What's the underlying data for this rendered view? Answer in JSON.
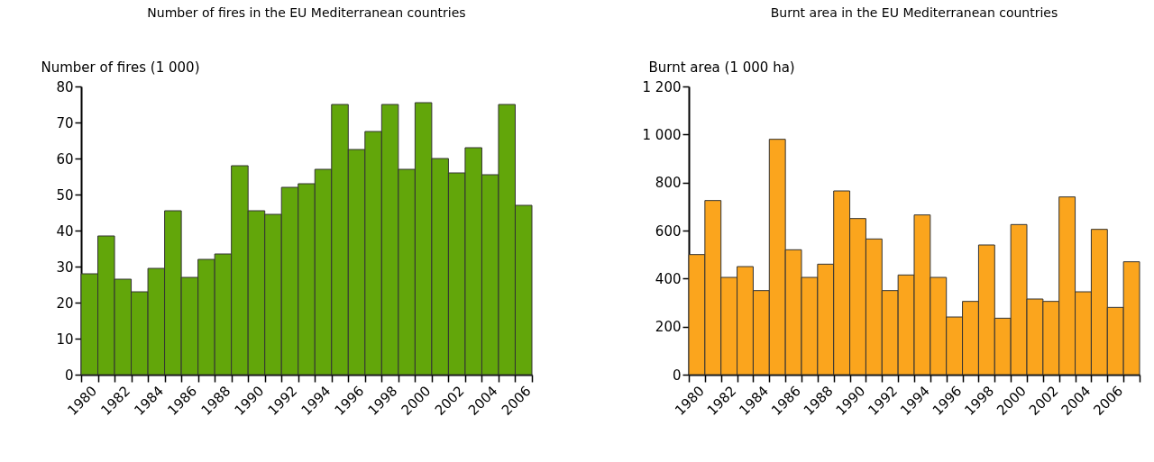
{
  "chart_data": [
    {
      "type": "bar",
      "title": "Number of fires in the EU Mediterranean countries",
      "ylabel": "Number of fires (1 000)",
      "categories": [
        "1980",
        null,
        "1982",
        null,
        "1984",
        null,
        "1986",
        null,
        "1988",
        null,
        "1990",
        null,
        "1992",
        null,
        "1994",
        null,
        "1996",
        null,
        "1998",
        null,
        "2000",
        null,
        "2002",
        null,
        "2004",
        null,
        "2006"
      ],
      "values": [
        28,
        38.5,
        26.5,
        23,
        29.5,
        45.5,
        27,
        32,
        33.5,
        58,
        45.5,
        44.5,
        52,
        53,
        57,
        75,
        62.5,
        67.5,
        75,
        57,
        75.5,
        60,
        56,
        63,
        55.5,
        75,
        47
      ],
      "color": "#62a60a",
      "ylim": [
        0,
        80
      ],
      "yticks": [
        0,
        10,
        20,
        30,
        40,
        50,
        60,
        70,
        80
      ],
      "grid": false
    },
    {
      "type": "bar",
      "title": "Burnt area in the EU Mediterranean countries",
      "ylabel": "Burnt area (1 000 ha)",
      "categories": [
        "1980",
        null,
        "1982",
        null,
        "1984",
        null,
        "1986",
        null,
        "1988",
        null,
        "1990",
        null,
        "1992",
        null,
        "1994",
        null,
        "1996",
        null,
        "1998",
        null,
        "2000",
        null,
        "2002",
        null,
        "2004",
        null,
        "2006",
        null
      ],
      "values": [
        500,
        725,
        405,
        450,
        350,
        980,
        520,
        405,
        460,
        765,
        650,
        565,
        350,
        415,
        665,
        405,
        240,
        305,
        540,
        235,
        625,
        315,
        305,
        740,
        345,
        605,
        280,
        470
      ],
      "color": "#fba51d",
      "ylim": [
        0,
        1200
      ],
      "yticks": [
        0,
        200,
        400,
        600,
        800,
        {
          "value": 1000,
          "label": "1 000"
        },
        {
          "value": 1200,
          "label": "1 200"
        }
      ],
      "grid": false
    }
  ]
}
